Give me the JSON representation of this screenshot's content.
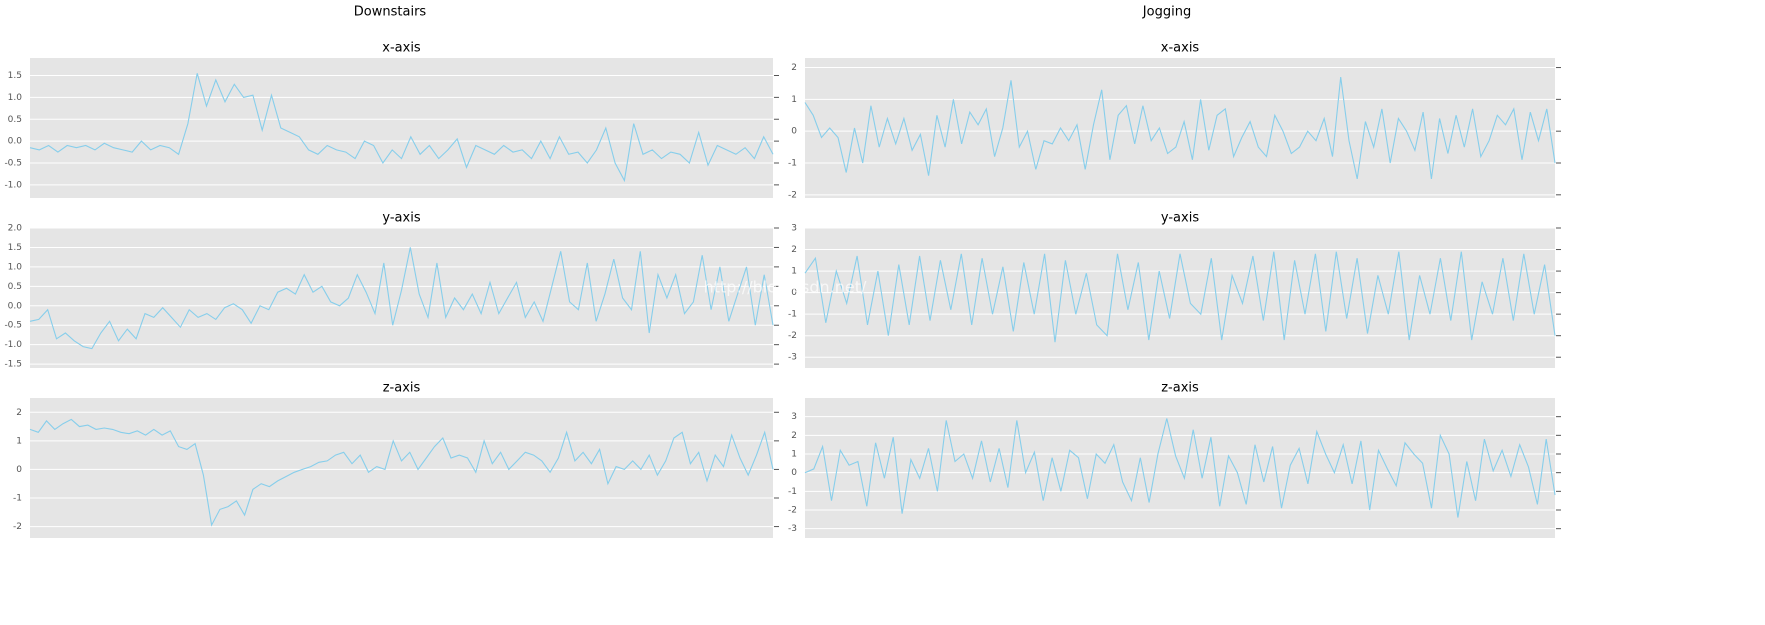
{
  "column_titles": [
    "Downstairs",
    "Jogging"
  ],
  "watermark": "http://blog.csdn.net/",
  "chart_data": [
    {
      "type": "line",
      "title": "x-axis",
      "color": "#87ceeb",
      "grid": true,
      "ylim": [
        -1.3,
        1.9
      ],
      "yticks": [
        {
          "value": -1,
          "label": "-1.0"
        },
        -0.5,
        {
          "value": 0,
          "label": "0.0"
        },
        0.5,
        {
          "value": 1,
          "label": "1.0"
        },
        1.5
      ],
      "values": [
        -0.15,
        -0.2,
        -0.1,
        -0.25,
        -0.1,
        -0.15,
        -0.1,
        -0.2,
        -0.05,
        -0.15,
        -0.2,
        -0.25,
        0.0,
        -0.2,
        -0.1,
        -0.15,
        -0.3,
        0.4,
        1.55,
        0.8,
        1.4,
        0.9,
        1.3,
        1.0,
        1.05,
        0.25,
        1.05,
        0.3,
        0.2,
        0.1,
        -0.2,
        -0.3,
        -0.1,
        -0.2,
        -0.25,
        -0.4,
        0.0,
        -0.1,
        -0.5,
        -0.2,
        -0.4,
        0.1,
        -0.3,
        -0.1,
        -0.4,
        -0.2,
        0.05,
        -0.6,
        -0.1,
        -0.2,
        -0.3,
        -0.1,
        -0.25,
        -0.2,
        -0.4,
        0.0,
        -0.4,
        0.1,
        -0.3,
        -0.25,
        -0.5,
        -0.2,
        0.3,
        -0.5,
        -0.9,
        0.4,
        -0.3,
        -0.2,
        -0.4,
        -0.25,
        -0.3,
        -0.5,
        0.2,
        -0.55,
        -0.1,
        -0.2,
        -0.3,
        -0.15,
        -0.4,
        0.1,
        -0.3
      ]
    },
    {
      "type": "line",
      "title": "y-axis",
      "color": "#87ceeb",
      "grid": true,
      "ylim": [
        -1.6,
        2.0
      ],
      "yticks": [
        -1.5,
        {
          "value": -1,
          "label": "-1.0"
        },
        -0.5,
        {
          "value": 0,
          "label": "0.0"
        },
        0.5,
        {
          "value": 1,
          "label": "1.0"
        },
        1.5,
        {
          "value": 2,
          "label": "2.0"
        }
      ],
      "values": [
        -0.4,
        -0.35,
        -0.1,
        -0.85,
        -0.7,
        -0.9,
        -1.05,
        -1.1,
        -0.7,
        -0.4,
        -0.9,
        -0.6,
        -0.85,
        -0.2,
        -0.3,
        -0.05,
        -0.3,
        -0.55,
        -0.1,
        -0.3,
        -0.2,
        -0.35,
        -0.05,
        0.05,
        -0.1,
        -0.45,
        0.0,
        -0.1,
        0.35,
        0.45,
        0.3,
        0.8,
        0.35,
        0.5,
        0.1,
        0.0,
        0.2,
        0.8,
        0.35,
        -0.2,
        1.1,
        -0.5,
        0.4,
        1.5,
        0.3,
        -0.3,
        1.1,
        -0.3,
        0.2,
        -0.1,
        0.3,
        -0.2,
        0.6,
        -0.2,
        0.2,
        0.6,
        -0.3,
        0.1,
        -0.4,
        0.5,
        1.4,
        0.1,
        -0.1,
        1.1,
        -0.4,
        0.3,
        1.2,
        0.2,
        -0.1,
        1.4,
        -0.7,
        0.8,
        0.2,
        0.8,
        -0.2,
        0.1,
        1.3,
        -0.1,
        1.0,
        -0.4,
        0.3,
        1.0,
        -0.5,
        0.8,
        -0.5
      ]
    },
    {
      "type": "line",
      "title": "z-axis",
      "color": "#87ceeb",
      "grid": true,
      "ylim": [
        -2.4,
        2.5
      ],
      "yticks": [
        -2,
        -1,
        0,
        1,
        2
      ],
      "values": [
        1.4,
        1.3,
        1.7,
        1.4,
        1.6,
        1.75,
        1.5,
        1.55,
        1.4,
        1.45,
        1.4,
        1.3,
        1.25,
        1.35,
        1.2,
        1.4,
        1.2,
        1.35,
        0.8,
        0.7,
        0.9,
        -0.2,
        -1.95,
        -1.4,
        -1.3,
        -1.1,
        -1.6,
        -0.7,
        -0.5,
        -0.6,
        -0.4,
        -0.25,
        -0.1,
        0.0,
        0.1,
        0.25,
        0.3,
        0.5,
        0.6,
        0.2,
        0.5,
        -0.1,
        0.1,
        0.0,
        1.0,
        0.3,
        0.6,
        0.0,
        0.4,
        0.8,
        1.1,
        0.4,
        0.5,
        0.4,
        -0.1,
        1.0,
        0.2,
        0.6,
        0.0,
        0.3,
        0.6,
        0.5,
        0.3,
        -0.1,
        0.4,
        1.3,
        0.3,
        0.6,
        0.2,
        0.7,
        -0.5,
        0.1,
        0.0,
        0.3,
        0.0,
        0.5,
        -0.2,
        0.3,
        1.1,
        1.3,
        0.2,
        0.6,
        -0.4,
        0.5,
        0.1,
        1.2,
        0.4,
        -0.2,
        0.5,
        1.3,
        0.0
      ]
    },
    {
      "type": "line",
      "title": "x-axis",
      "color": "#87ceeb",
      "grid": true,
      "ylim": [
        -2.1,
        2.3
      ],
      "yticks": [
        -2,
        -1,
        0,
        1,
        2
      ],
      "values": [
        0.9,
        0.5,
        -0.2,
        0.1,
        -0.2,
        -1.3,
        0.1,
        -1.0,
        0.8,
        -0.5,
        0.4,
        -0.4,
        0.4,
        -0.6,
        -0.1,
        -1.4,
        0.5,
        -0.5,
        1.0,
        -0.4,
        0.6,
        0.2,
        0.7,
        -0.8,
        0.1,
        1.6,
        -0.5,
        0.0,
        -1.2,
        -0.3,
        -0.4,
        0.1,
        -0.3,
        0.2,
        -1.2,
        0.2,
        1.3,
        -0.9,
        0.5,
        0.8,
        -0.4,
        0.8,
        -0.3,
        0.1,
        -0.7,
        -0.5,
        0.3,
        -0.9,
        1.0,
        -0.6,
        0.5,
        0.7,
        -0.8,
        -0.2,
        0.3,
        -0.5,
        -0.8,
        0.5,
        0.0,
        -0.7,
        -0.5,
        0.0,
        -0.3,
        0.4,
        -0.8,
        1.7,
        -0.3,
        -1.5,
        0.3,
        -0.5,
        0.7,
        -1.0,
        0.4,
        0.0,
        -0.6,
        0.6,
        -1.5,
        0.4,
        -0.7,
        0.5,
        -0.5,
        0.7,
        -0.8,
        -0.3,
        0.5,
        0.2,
        0.7,
        -0.9,
        0.6,
        -0.3,
        0.7,
        -1.0
      ]
    },
    {
      "type": "line",
      "title": "y-axis",
      "color": "#87ceeb",
      "grid": true,
      "ylim": [
        -3.5,
        3.0
      ],
      "yticks": [
        -3,
        -2,
        -1,
        0,
        1,
        2,
        3
      ],
      "values": [
        0.9,
        1.6,
        -1.4,
        1.0,
        -0.5,
        1.7,
        -1.5,
        1.0,
        -2.0,
        1.3,
        -1.5,
        1.7,
        -1.3,
        1.5,
        -0.8,
        1.8,
        -1.5,
        1.6,
        -1.0,
        1.2,
        -1.8,
        1.4,
        -1.0,
        1.8,
        -2.3,
        1.5,
        -1.0,
        0.9,
        -1.5,
        -2.0,
        1.8,
        -0.8,
        1.4,
        -2.2,
        1.0,
        -1.2,
        1.8,
        -0.5,
        -1.0,
        1.6,
        -2.2,
        0.8,
        -0.5,
        1.7,
        -1.3,
        1.9,
        -2.2,
        1.5,
        -1.0,
        1.8,
        -1.8,
        1.9,
        -1.2,
        1.6,
        -1.9,
        0.8,
        -1.0,
        1.9,
        -2.2,
        0.8,
        -1.0,
        1.6,
        -1.3,
        1.9,
        -2.2,
        0.5,
        -1.0,
        1.6,
        -1.3,
        1.8,
        -1.0,
        1.3,
        -2.0
      ]
    },
    {
      "type": "line",
      "title": "z-axis",
      "color": "#87ceeb",
      "grid": true,
      "ylim": [
        -3.5,
        4.0
      ],
      "yticks": [
        -3,
        -2,
        -1,
        0,
        1,
        2,
        3
      ],
      "values": [
        0.0,
        0.2,
        1.4,
        -1.5,
        1.2,
        0.4,
        0.6,
        -1.8,
        1.6,
        -0.3,
        1.9,
        -2.2,
        0.7,
        -0.3,
        1.3,
        -1.0,
        2.8,
        0.6,
        1.0,
        -0.3,
        1.7,
        -0.5,
        1.3,
        -0.8,
        2.8,
        0.0,
        1.1,
        -1.5,
        0.8,
        -1.0,
        1.2,
        0.8,
        -1.4,
        1.0,
        0.5,
        1.5,
        -0.5,
        -1.5,
        0.8,
        -1.6,
        1.0,
        2.9,
        0.9,
        -0.3,
        2.3,
        -0.3,
        1.9,
        -1.8,
        0.9,
        0.0,
        -1.7,
        1.5,
        -0.5,
        1.4,
        -1.9,
        0.4,
        1.3,
        -0.6,
        2.2,
        1.0,
        0.0,
        1.5,
        -0.6,
        1.7,
        -2.0,
        1.2,
        0.2,
        -0.7,
        1.6,
        1.0,
        0.5,
        -1.9,
        2.0,
        1.0,
        -2.4,
        0.6,
        -1.5,
        1.8,
        0.1,
        1.2,
        -0.2,
        1.5,
        0.3,
        -1.7,
        1.8,
        -1.2
      ]
    }
  ]
}
